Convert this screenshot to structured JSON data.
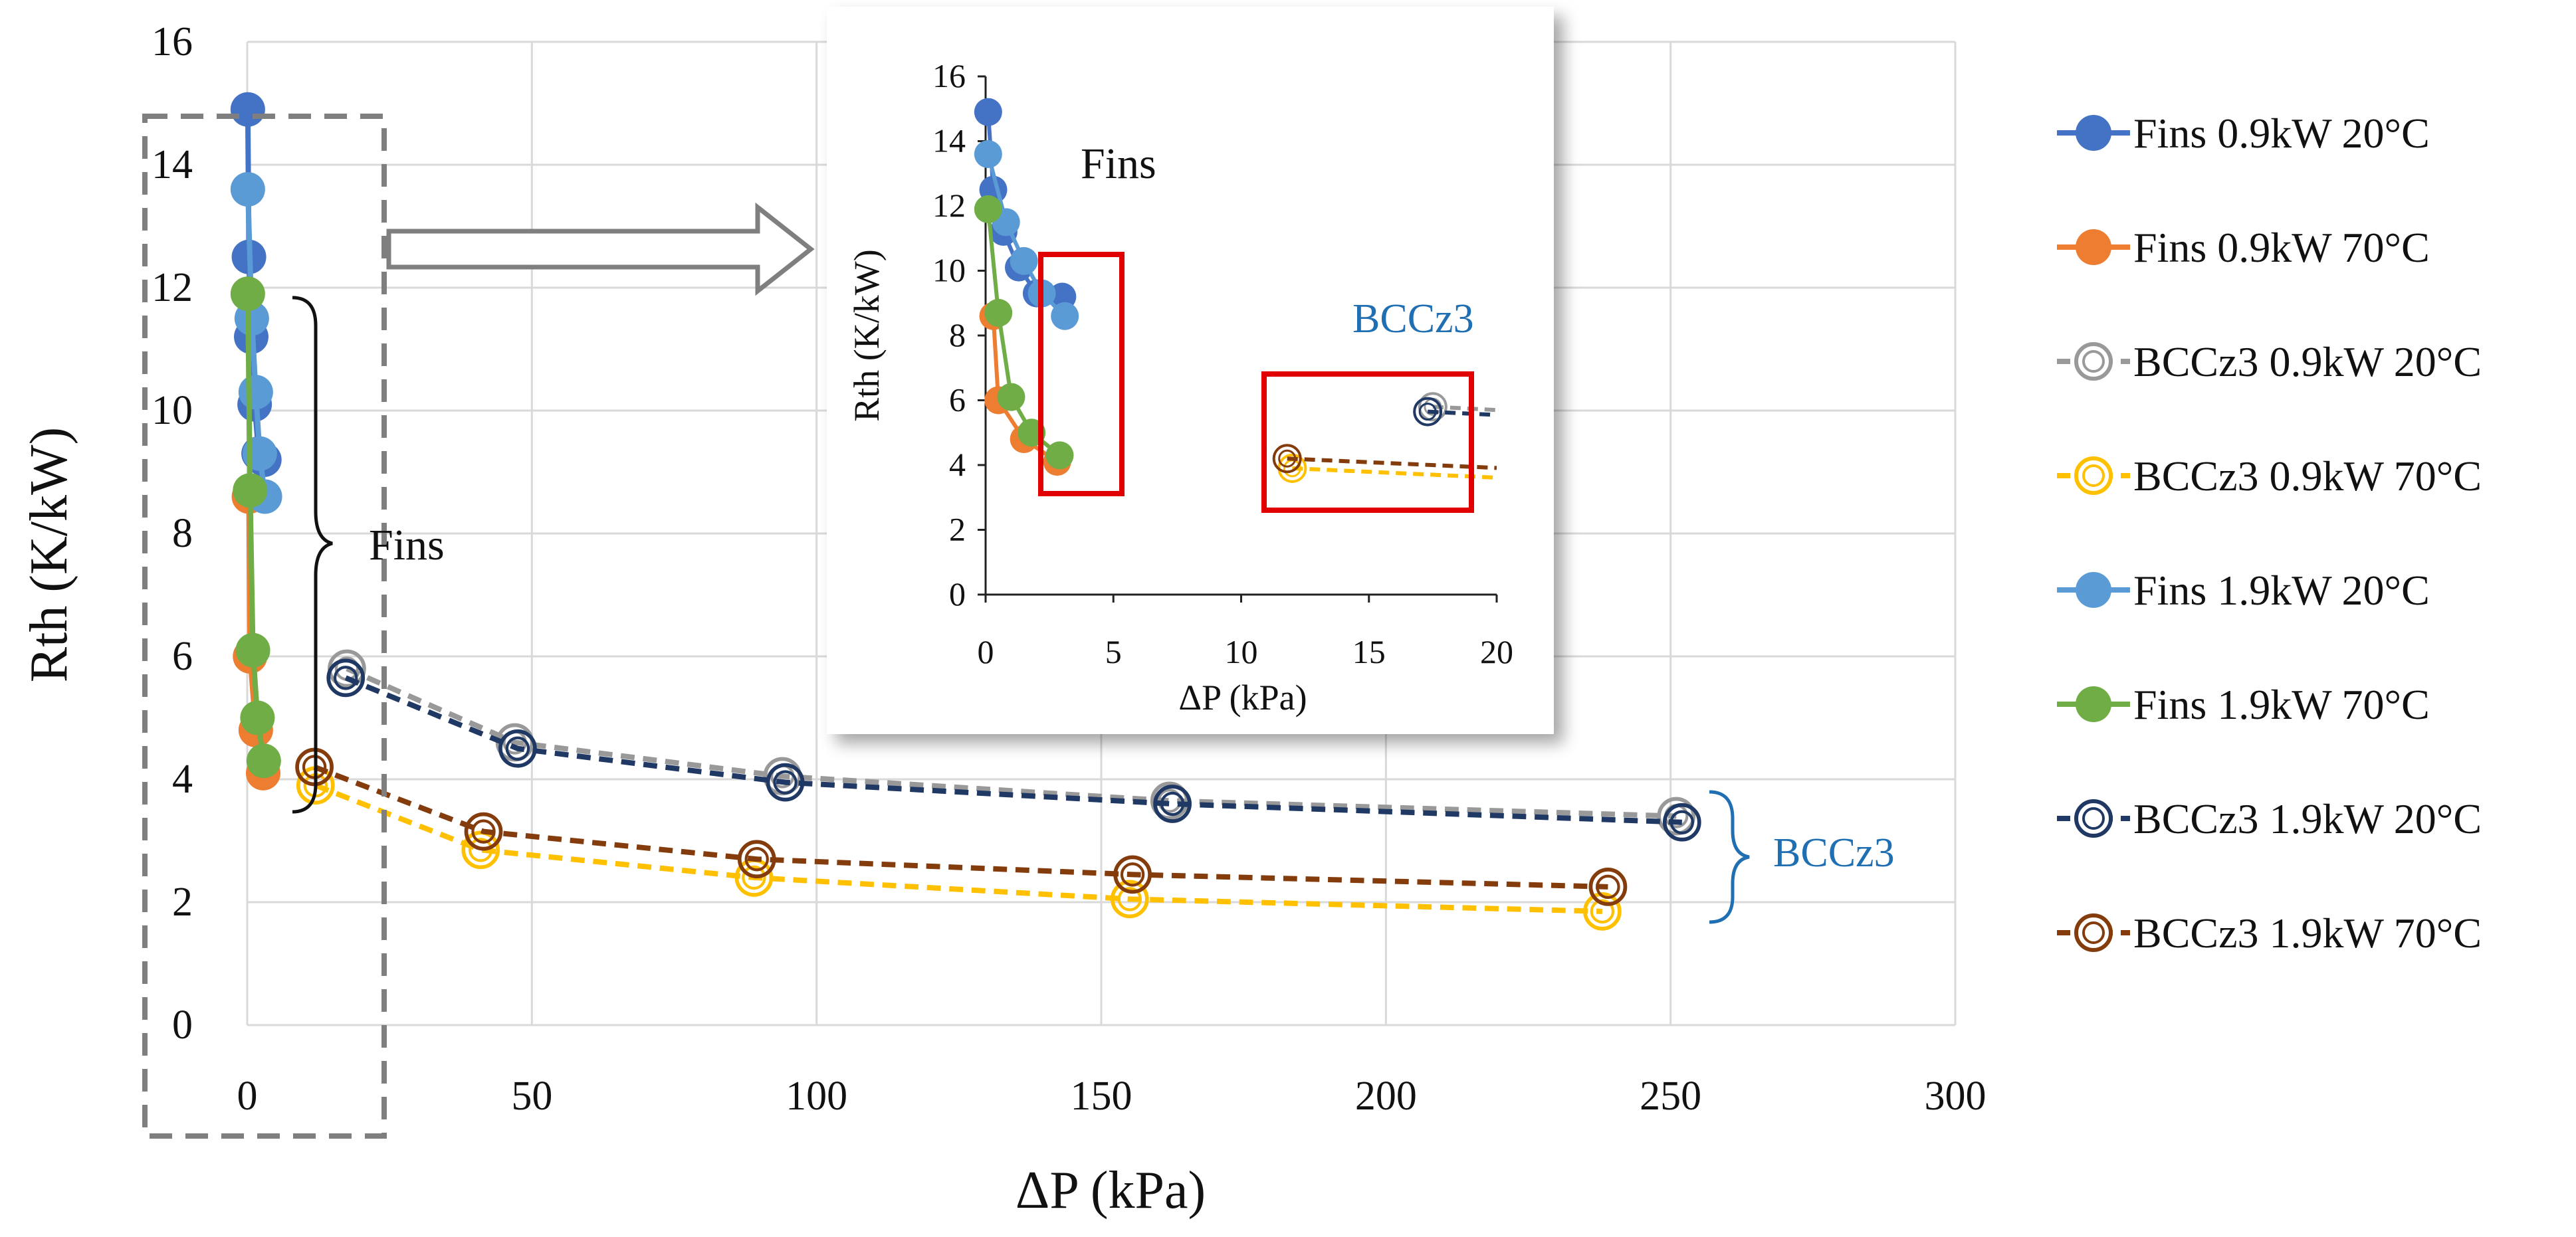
{
  "chart_data": [
    {
      "name": "main",
      "type": "scatter",
      "xlabel": "ΔP (kPa)",
      "ylabel": "Rth (K/kW)",
      "xlim": [
        0,
        300
      ],
      "ylim": [
        0,
        16
      ],
      "xticks": [
        0,
        50,
        100,
        150,
        200,
        250,
        300
      ],
      "xtick_labels": [
        "0",
        "50",
        "100",
        "150",
        "200",
        "250",
        "300"
      ],
      "yticks": [
        0,
        2,
        4,
        6,
        8,
        10,
        12,
        14,
        16
      ],
      "ytick_labels": [
        "0",
        "2",
        "4",
        "6",
        "8",
        "10",
        "12",
        "14",
        "16"
      ],
      "grid": true,
      "legend_position": "right",
      "annotations": {
        "fins_label": "Fins",
        "bcc_label": "BCCz3"
      },
      "series": [
        {
          "name": "Fins 0.9kW 20°C",
          "color": "#4472c4",
          "marker": "filled",
          "line": "solid",
          "x": [
            0.1,
            0.3,
            0.7,
            1.3,
            2.0,
            3.0
          ],
          "y": [
            14.9,
            12.5,
            11.2,
            10.1,
            9.3,
            9.2
          ]
        },
        {
          "name": "Fins 0.9kW 70°C",
          "color": "#ed7d31",
          "marker": "filled",
          "line": "solid",
          "x": [
            0.3,
            0.5,
            1.5,
            2.8
          ],
          "y": [
            8.6,
            6.0,
            4.8,
            4.1
          ]
        },
        {
          "name": "BCCz3 0.9kW 20°C",
          "color": "#999999",
          "marker": "open",
          "line": "dashed",
          "x": [
            17.5,
            47.0,
            94.0,
            162.0,
            251.0
          ],
          "y": [
            5.8,
            4.6,
            4.05,
            3.65,
            3.4
          ]
        },
        {
          "name": "BCCz3 0.9kW 70°C",
          "color": "#ffc000",
          "marker": "open",
          "line": "dashed",
          "x": [
            12.0,
            41.0,
            89.0,
            155.0,
            238.0
          ],
          "y": [
            3.9,
            2.85,
            2.4,
            2.05,
            1.85
          ]
        },
        {
          "name": "Fins 1.9kW 20°C",
          "color": "#5b9bd5",
          "marker": "filled",
          "line": "solid",
          "x": [
            0.1,
            0.8,
            1.5,
            2.2,
            3.1
          ],
          "y": [
            13.6,
            11.5,
            10.3,
            9.3,
            8.6
          ]
        },
        {
          "name": "Fins 1.9kW 70°C",
          "color": "#70ad47",
          "marker": "filled",
          "line": "solid",
          "x": [
            0.1,
            0.5,
            1.0,
            1.8,
            2.9
          ],
          "y": [
            11.9,
            8.7,
            6.1,
            5.0,
            4.3
          ]
        },
        {
          "name": "BCCz3 1.9kW 20°C",
          "color": "#1f3864",
          "marker": "open",
          "line": "dashed",
          "x": [
            17.3,
            47.5,
            94.5,
            162.5,
            252.0
          ],
          "y": [
            5.65,
            4.5,
            3.95,
            3.6,
            3.3
          ]
        },
        {
          "name": "BCCz3 1.9kW 70°C",
          "color": "#843c0c",
          "marker": "open",
          "line": "dashed",
          "x": [
            11.8,
            41.5,
            89.5,
            155.5,
            239.0
          ],
          "y": [
            4.2,
            3.15,
            2.7,
            2.45,
            2.25
          ]
        }
      ]
    },
    {
      "name": "inset",
      "type": "scatter",
      "xlabel": "ΔP (kPa)",
      "ylabel": "Rth (K/kW)",
      "xlim": [
        0,
        20
      ],
      "ylim": [
        0,
        16
      ],
      "xticks": [
        0,
        5,
        10,
        15,
        20
      ],
      "xtick_labels": [
        "0",
        "5",
        "10",
        "15",
        "20"
      ],
      "yticks": [
        0,
        2,
        4,
        6,
        8,
        10,
        12,
        14,
        16
      ],
      "ytick_labels": [
        "0",
        "2",
        "4",
        "6",
        "8",
        "10",
        "12",
        "14",
        "16"
      ],
      "grid": false,
      "annotations": {
        "fins_label": "Fins",
        "bcc_label": "BCCz3"
      }
    }
  ]
}
